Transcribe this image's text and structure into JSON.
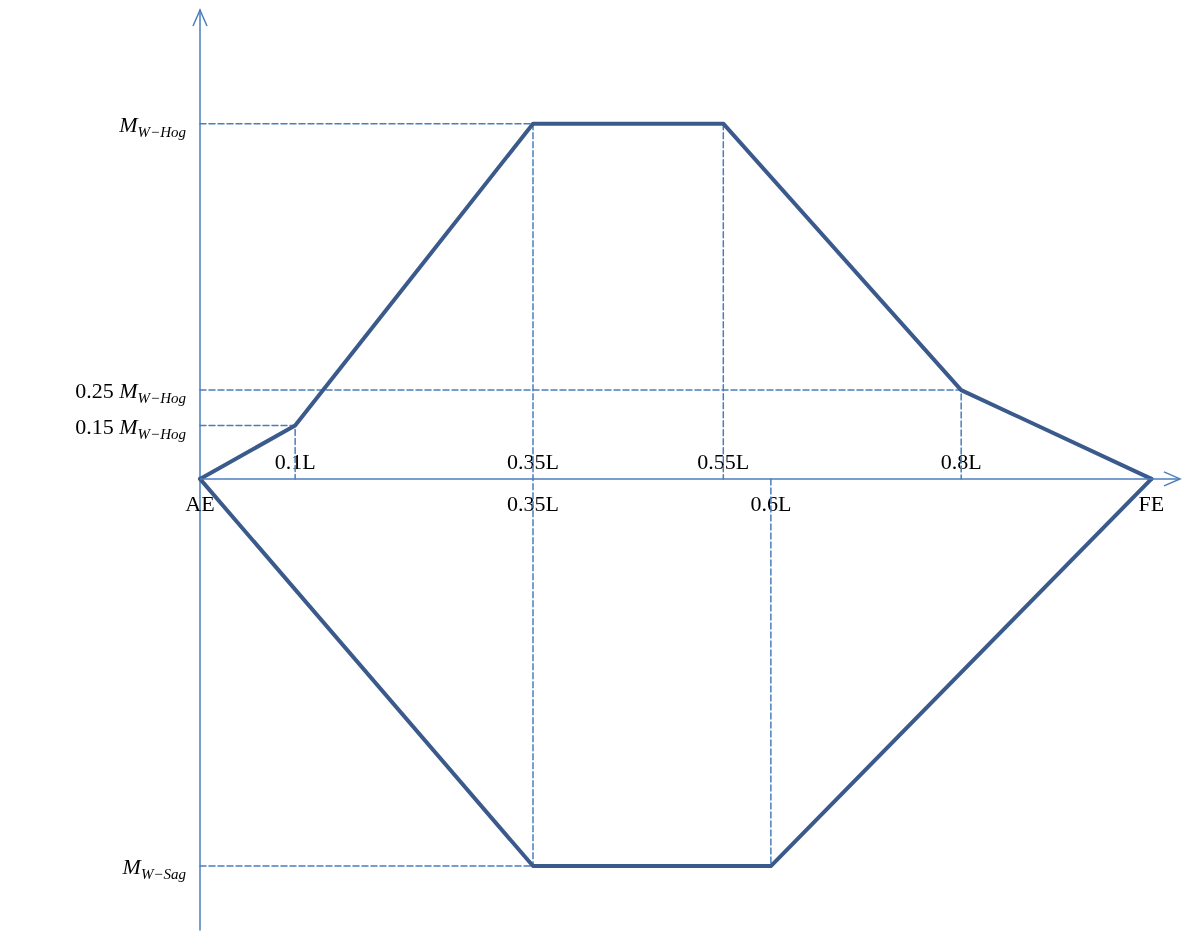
{
  "chart_data": {
    "type": "line",
    "marker": "none",
    "xlim": [
      0,
      1.03
    ],
    "ylim": [
      -1.27,
      1.32
    ],
    "xticks": [
      {
        "value": 0,
        "label": "AE"
      },
      {
        "value": 0.35,
        "label": "0.35L"
      },
      {
        "value": 0.6,
        "label": "0.6L"
      },
      {
        "value": 1,
        "label": "FE"
      }
    ],
    "x2lim": [
      0,
      1.03
    ],
    "x2ticks": [
      {
        "value": 0.1,
        "label": "0.1L"
      },
      {
        "value": 0.35,
        "label": "0.35L"
      },
      {
        "value": 0.55,
        "label": "0.55L"
      },
      {
        "value": 0.8,
        "label": "0.8L"
      }
    ],
    "yticks": [
      {
        "value": 1,
        "label": "M$_{W−Hog}$"
      },
      {
        "value": 0.25,
        "label": "0.25 M$_{W−Hog}$"
      },
      {
        "value": 0.15,
        "label": "0.15 M$_{W−Hog}$"
      },
      {
        "value": -1.09,
        "label": "M$_{W−Sag}$"
      }
    ],
    "ref_lines": [
      {
        "axis": "y",
        "value": 0,
        "color": "#4a7ebb",
        "line_style": "solid"
      }
    ],
    "series": [
      {
        "color": "#3b5a8c",
        "line_style": "solid",
        "x": [
          0,
          0.1,
          0.35,
          0.55,
          0.8,
          1
        ],
        "values": [
          0,
          0.15,
          1,
          1,
          0.25,
          0
        ]
      },
      {
        "color": "#3b5a8c",
        "line_style": "solid",
        "x": [
          0,
          0.35,
          0.6,
          1
        ],
        "values": [
          0,
          -1.09,
          -1.09,
          0
        ]
      },
      {
        "color": "#4a7ebb",
        "line_style": "dashed",
        "x": [
          0,
          0.35,
          0.35
        ],
        "values": [
          1,
          1,
          -1.09
        ]
      },
      {
        "color": "#4a7ebb",
        "line_style": "dashed",
        "x": [
          0.55,
          0.55
        ],
        "values": [
          1,
          0
        ]
      },
      {
        "color": "#4a7ebb",
        "line_style": "dashed",
        "x": [
          0,
          0.8,
          0.8
        ],
        "values": [
          0.25,
          0.25,
          0
        ]
      },
      {
        "color": "#4a7ebb",
        "line_style": "dashed",
        "x": [
          0,
          0.1,
          0.1
        ],
        "values": [
          0.15,
          0.15,
          0
        ]
      },
      {
        "color": "#4a7ebb",
        "line_style": "dashed",
        "x": [
          0,
          0.35
        ],
        "values": [
          -1.09,
          -1.09
        ]
      },
      {
        "color": "#4a7ebb",
        "line_style": "dashed",
        "x": [
          0.6,
          0.6
        ],
        "values": [
          0,
          -1.09
        ]
      }
    ]
  }
}
